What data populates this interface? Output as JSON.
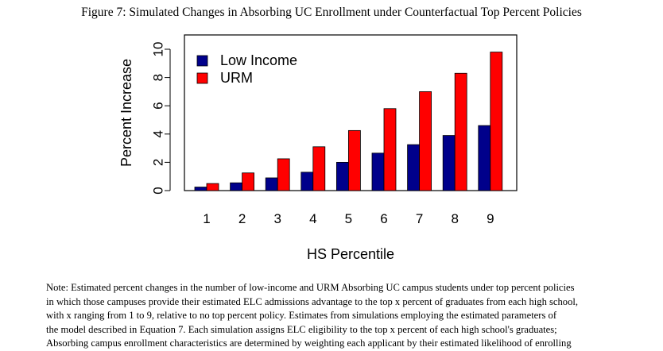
{
  "figure_title": "Figure 7: Simulated Changes in Absorbing UC Enrollment under Counterfactual Top Percent Policies",
  "chart_data": {
    "type": "bar",
    "xlabel": "HS Percentile",
    "ylabel": "Percent Increase",
    "ylim": [
      0,
      10
    ],
    "yticks": [
      "0",
      "2",
      "4",
      "6",
      "8",
      "10"
    ],
    "categories": [
      "1",
      "2",
      "3",
      "4",
      "5",
      "6",
      "7",
      "8",
      "9"
    ],
    "legend_position": "top-left",
    "grid": false,
    "series": [
      {
        "name": "Low Income",
        "color": "#00008b",
        "values": [
          0.25,
          0.55,
          0.9,
          1.3,
          2.0,
          2.65,
          3.25,
          3.9,
          4.6
        ]
      },
      {
        "name": "URM",
        "color": "#ff0000",
        "values": [
          0.5,
          1.25,
          2.25,
          3.1,
          4.25,
          5.8,
          7.0,
          8.3,
          9.8
        ]
      }
    ]
  },
  "note": {
    "lines": [
      "Note: Estimated percent changes in the number of low-income and URM Absorbing UC campus students under top percent policies",
      "in which those campuses provide their estimated ELC admissions advantage to the top x percent of graduates from each high school,",
      "with x ranging from 1 to 9, relative to no top percent policy. Estimates from simulations employing the estimated parameters of",
      "the model described in Equation 7. Each simulation assigns ELC eligibility to the top x percent of each high school's graduates;",
      "Absorbing campus enrollment characteristics are determined by weighting each applicant by their estimated likelihood of enrolling"
    ]
  }
}
